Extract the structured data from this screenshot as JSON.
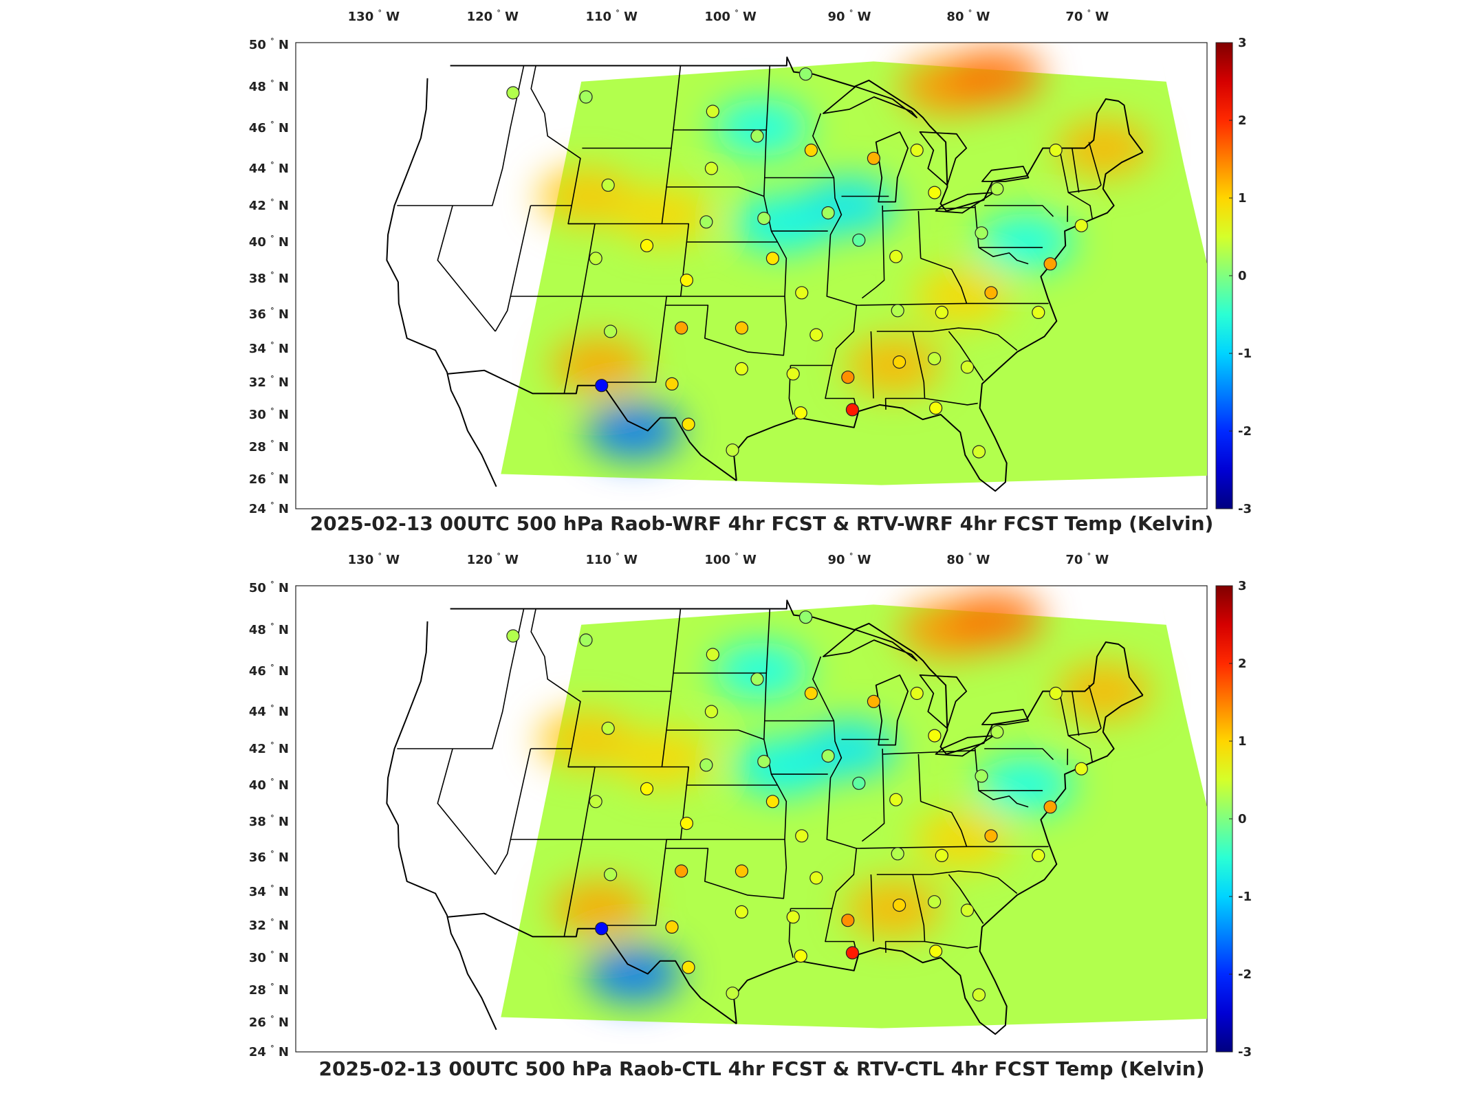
{
  "panels": [
    {
      "title": "2025-02-13 00UTC 500 hPa Raob-WRF 4hr FCST & RTV-WRF 4hr FCST Temp (Kelvin)"
    },
    {
      "title": "2025-02-13 00UTC 500 hPa Raob-CTL 4hr FCST & RTV-CTL 4hr FCST Temp (Kelvin)"
    }
  ],
  "map": {
    "projection": "lambert-conformal-like",
    "lon_range": [
      -135,
      -62
    ],
    "lat_range": [
      24,
      50
    ],
    "lon_ticks": [
      {
        "value": -130,
        "label": "130",
        "suffix": "W"
      },
      {
        "value": -120,
        "label": "120",
        "suffix": "W"
      },
      {
        "value": -110,
        "label": "110",
        "suffix": "W"
      },
      {
        "value": -100,
        "label": "100",
        "suffix": "W"
      },
      {
        "value": -90,
        "label": "90",
        "suffix": "W"
      },
      {
        "value": -80,
        "label": "80",
        "suffix": "W"
      },
      {
        "value": -70,
        "label": "70",
        "suffix": "W"
      }
    ],
    "lat_ticks": [
      {
        "value": 50,
        "label": "50",
        "suffix": "N"
      },
      {
        "value": 48,
        "label": "48",
        "suffix": "N"
      },
      {
        "value": 46,
        "label": "46",
        "suffix": "N"
      },
      {
        "value": 44,
        "label": "44",
        "suffix": "N"
      },
      {
        "value": 42,
        "label": "42",
        "suffix": "N"
      },
      {
        "value": 40,
        "label": "40",
        "suffix": "N"
      },
      {
        "value": 38,
        "label": "38",
        "suffix": "N"
      },
      {
        "value": 36,
        "label": "36",
        "suffix": "N"
      },
      {
        "value": 34,
        "label": "34",
        "suffix": "N"
      },
      {
        "value": 32,
        "label": "32",
        "suffix": "N"
      },
      {
        "value": 30,
        "label": "30",
        "suffix": "N"
      },
      {
        "value": 28,
        "label": "28",
        "suffix": "N"
      },
      {
        "value": 26,
        "label": "26",
        "suffix": "N"
      },
      {
        "value": 24,
        "label": "24",
        "suffix": "N"
      }
    ],
    "colorbar": {
      "colormap": "jet",
      "min": -3,
      "max": 3,
      "ticks": [
        {
          "value": 3,
          "label": "3"
        },
        {
          "value": 2,
          "label": "2"
        },
        {
          "value": 1,
          "label": "1"
        },
        {
          "value": 0,
          "label": "0"
        },
        {
          "value": -1,
          "label": "-1"
        },
        {
          "value": -2,
          "label": "-2"
        },
        {
          "value": -3,
          "label": "-3"
        }
      ]
    },
    "field_background_value": 0.3,
    "field_features": [
      {
        "lon": -82,
        "lat": 48,
        "value": 1.4
      },
      {
        "lon": -78,
        "lat": 48.5,
        "value": 1.6
      },
      {
        "lon": -70,
        "lat": 45,
        "value": 1.2
      },
      {
        "lon": -110,
        "lat": 42.5,
        "value": 1.1
      },
      {
        "lon": -104,
        "lat": 41.5,
        "value": 1.0
      },
      {
        "lon": -97,
        "lat": 46,
        "value": -0.7
      },
      {
        "lon": -95,
        "lat": 41,
        "value": -0.8
      },
      {
        "lon": -90,
        "lat": 42,
        "value": -0.9
      },
      {
        "lon": -77,
        "lat": 40,
        "value": -0.7
      },
      {
        "lon": -104,
        "lat": 29,
        "value": -1.6
      },
      {
        "lon": -107,
        "lat": 33,
        "value": 1.3
      },
      {
        "lon": -87,
        "lat": 33,
        "value": 1.2
      },
      {
        "lon": -82,
        "lat": 37,
        "value": 1.0
      }
    ],
    "stations": [
      {
        "lon": -117.4,
        "lat": 47.7,
        "value": 0.3
      },
      {
        "lon": -111.4,
        "lat": 47.5,
        "value": 0.2
      },
      {
        "lon": -101.0,
        "lat": 46.8,
        "value": 0.5
      },
      {
        "lon": -97.3,
        "lat": 45.6,
        "value": 0.2
      },
      {
        "lon": -93.6,
        "lat": 48.6,
        "value": 0.1
      },
      {
        "lon": -93.0,
        "lat": 44.9,
        "value": 1.0
      },
      {
        "lon": -88.1,
        "lat": 44.5,
        "value": 1.2
      },
      {
        "lon": -84.7,
        "lat": 44.9,
        "value": 0.6
      },
      {
        "lon": -83.5,
        "lat": 42.7,
        "value": 0.7
      },
      {
        "lon": -78.7,
        "lat": 42.9,
        "value": 0.3
      },
      {
        "lon": -73.8,
        "lat": 44.9,
        "value": 0.6
      },
      {
        "lon": -108.5,
        "lat": 43.1,
        "value": 0.4
      },
      {
        "lon": -100.7,
        "lat": 44.0,
        "value": 0.5
      },
      {
        "lon": -100.7,
        "lat": 41.1,
        "value": 0.2
      },
      {
        "lon": -96.4,
        "lat": 41.3,
        "value": 0.2
      },
      {
        "lon": -91.6,
        "lat": 41.6,
        "value": 0.2
      },
      {
        "lon": -89.3,
        "lat": 40.1,
        "value": -0.2
      },
      {
        "lon": -86.6,
        "lat": 39.2,
        "value": 0.6
      },
      {
        "lon": -80.2,
        "lat": 40.5,
        "value": 0.2
      },
      {
        "lon": -108.5,
        "lat": 39.1,
        "value": 0.4
      },
      {
        "lon": -104.9,
        "lat": 39.8,
        "value": 0.8
      },
      {
        "lon": -101.7,
        "lat": 37.9,
        "value": 0.8
      },
      {
        "lon": -95.6,
        "lat": 39.1,
        "value": 0.9
      },
      {
        "lon": -93.4,
        "lat": 37.2,
        "value": 0.6
      },
      {
        "lon": -97.5,
        "lat": 35.2,
        "value": 1.1
      },
      {
        "lon": -101.7,
        "lat": 35.2,
        "value": 1.3
      },
      {
        "lon": -106.6,
        "lat": 35.0,
        "value": 0.3
      },
      {
        "lon": -92.3,
        "lat": 34.8,
        "value": 0.6
      },
      {
        "lon": -86.6,
        "lat": 36.2,
        "value": 0.3
      },
      {
        "lon": -83.5,
        "lat": 36.1,
        "value": 0.6
      },
      {
        "lon": -79.9,
        "lat": 37.2,
        "value": 1.2
      },
      {
        "lon": -76.7,
        "lat": 36.1,
        "value": 0.6
      },
      {
        "lon": -75.4,
        "lat": 38.8,
        "value": 1.3
      },
      {
        "lon": -72.7,
        "lat": 40.9,
        "value": 0.6
      },
      {
        "lon": -82.0,
        "lat": 32.9,
        "value": 0.5
      },
      {
        "lon": -84.2,
        "lat": 33.4,
        "value": 0.4
      },
      {
        "lon": -86.6,
        "lat": 33.2,
        "value": 1.0
      },
      {
        "lon": -90.1,
        "lat": 32.3,
        "value": 1.4
      },
      {
        "lon": -93.8,
        "lat": 32.5,
        "value": 0.6
      },
      {
        "lon": -97.3,
        "lat": 32.8,
        "value": 0.6
      },
      {
        "lon": -101.9,
        "lat": 31.9,
        "value": 1.0
      },
      {
        "lon": -106.6,
        "lat": 31.8,
        "value": -2.2
      },
      {
        "lon": -100.5,
        "lat": 29.4,
        "value": 0.9
      },
      {
        "lon": -97.5,
        "lat": 27.8,
        "value": 0.4
      },
      {
        "lon": -93.2,
        "lat": 30.1,
        "value": 0.7
      },
      {
        "lon": -89.8,
        "lat": 30.3,
        "value": 2.1
      },
      {
        "lon": -84.3,
        "lat": 30.4,
        "value": 0.7
      },
      {
        "lon": -81.7,
        "lat": 27.7,
        "value": 0.5
      }
    ]
  }
}
